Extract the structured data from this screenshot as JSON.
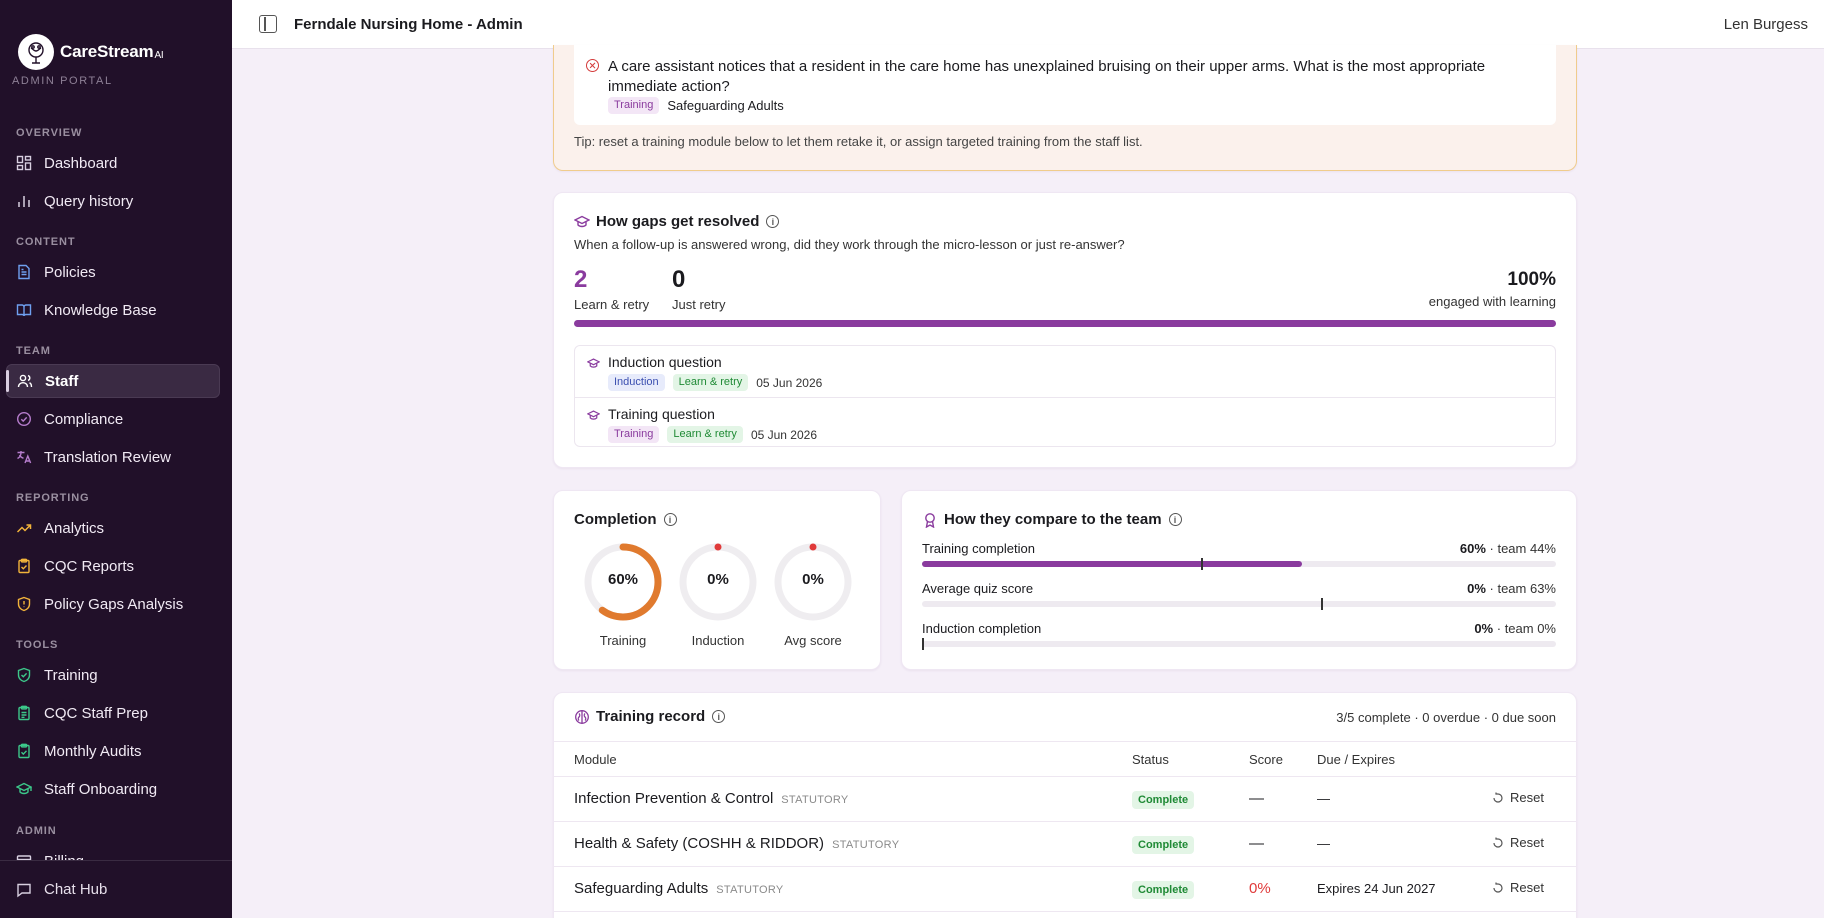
{
  "brand": {
    "name": "CareStream",
    "suffix": "AI",
    "portal": "ADMIN PORTAL"
  },
  "sidebar": {
    "groups": [
      {
        "label": "OVERVIEW",
        "items": [
          {
            "label": "Dashboard",
            "icon": "dashboard-icon"
          },
          {
            "label": "Query history",
            "icon": "bar-chart-icon"
          }
        ]
      },
      {
        "label": "CONTENT",
        "items": [
          {
            "label": "Policies",
            "icon": "document-icon"
          },
          {
            "label": "Knowledge Base",
            "icon": "book-icon"
          }
        ]
      },
      {
        "label": "TEAM",
        "items": [
          {
            "label": "Staff",
            "icon": "users-icon",
            "active": true
          },
          {
            "label": "Compliance",
            "icon": "check-circle-icon"
          },
          {
            "label": "Translation Review",
            "icon": "translate-icon"
          }
        ]
      },
      {
        "label": "REPORTING",
        "items": [
          {
            "label": "Analytics",
            "icon": "trend-icon"
          },
          {
            "label": "CQC Reports",
            "icon": "clipboard-icon"
          },
          {
            "label": "Policy Gaps Analysis",
            "icon": "shield-alert-icon"
          }
        ]
      },
      {
        "label": "TOOLS",
        "items": [
          {
            "label": "Training",
            "icon": "shield-check-icon"
          },
          {
            "label": "CQC Staff Prep",
            "icon": "clipboard-list-icon"
          },
          {
            "label": "Monthly Audits",
            "icon": "clipboard-check-icon"
          },
          {
            "label": "Staff Onboarding",
            "icon": "graduation-cap-icon"
          }
        ]
      },
      {
        "label": "ADMIN",
        "items": [
          {
            "label": "Billing",
            "icon": "billing-icon"
          }
        ]
      }
    ],
    "footer": {
      "label": "Chat Hub",
      "icon": "chat-icon"
    }
  },
  "topbar": {
    "title": "Ferndale Nursing Home - Admin",
    "user": "Len Burgess"
  },
  "alert": {
    "question": "A care assistant notices that a resident in the care home has unexplained bruising on their upper arms. What is the most appropriate immediate action?",
    "tag": "Training",
    "topic": "Safeguarding Adults",
    "tip": "Tip: reset a training module below to let them retake it, or assign targeted training from the staff list."
  },
  "gaps": {
    "title": "How gaps get resolved",
    "subtitle": "When a follow-up is answered wrong, did they work through the micro-lesson or just re-answer?",
    "learn_retry": {
      "value": "2",
      "label": "Learn & retry"
    },
    "just_retry": {
      "value": "0",
      "label": "Just retry"
    },
    "engaged": {
      "value": "100%",
      "label": "engaged with learning",
      "fraction": 1.0
    },
    "items": [
      {
        "title": "Induction question",
        "tag": "Induction",
        "status": "Learn & retry",
        "date": "05 Jun 2026"
      },
      {
        "title": "Training question",
        "tag": "Training",
        "status": "Learn & retry",
        "date": "05 Jun 2026"
      }
    ]
  },
  "completion": {
    "title": "Completion",
    "rings": [
      {
        "value": "60%",
        "label": "Training",
        "fraction": 0.6,
        "color": "#e07a2e"
      },
      {
        "value": "0%",
        "label": "Induction",
        "fraction": 0,
        "color": "#e03a3a"
      },
      {
        "value": "0%",
        "label": "Avg score",
        "fraction": 0,
        "color": "#e03a3a"
      }
    ]
  },
  "compare": {
    "title": "How they compare to the team",
    "rows": [
      {
        "label": "Training completion",
        "value": "60%",
        "team": "· team 44%",
        "fraction": 0.6,
        "team_fraction": 0.44
      },
      {
        "label": "Average quiz score",
        "value": "0%",
        "team": "· team 63%",
        "fraction": 0,
        "team_fraction": 0.63
      },
      {
        "label": "Induction completion",
        "value": "0%",
        "team": "· team 0%",
        "fraction": 0,
        "team_fraction": 0
      }
    ]
  },
  "record": {
    "title": "Training record",
    "summary": "3/5 complete · 0 overdue · 0 due soon",
    "headers": {
      "module": "Module",
      "status": "Status",
      "score": "Score",
      "due": "Due / Expires"
    },
    "rows": [
      {
        "module": "Infection Prevention & Control",
        "tag": "STATUTORY",
        "status": "Complete",
        "score": "—",
        "due": "—",
        "action": "Reset"
      },
      {
        "module": "Health & Safety (COSHH & RIDDOR)",
        "tag": "STATUTORY",
        "status": "Complete",
        "score": "—",
        "due": "—",
        "action": "Reset"
      },
      {
        "module": "Safeguarding Adults",
        "tag": "STATUTORY",
        "status": "Complete",
        "score": "0%",
        "due": "Expires 24 Jun 2027",
        "action": "Reset"
      }
    ]
  },
  "colors": {
    "sidebar_bg": "#211029",
    "accent": "#8a3b9e",
    "orange": "#e07a2e",
    "red": "#e03a3a"
  }
}
